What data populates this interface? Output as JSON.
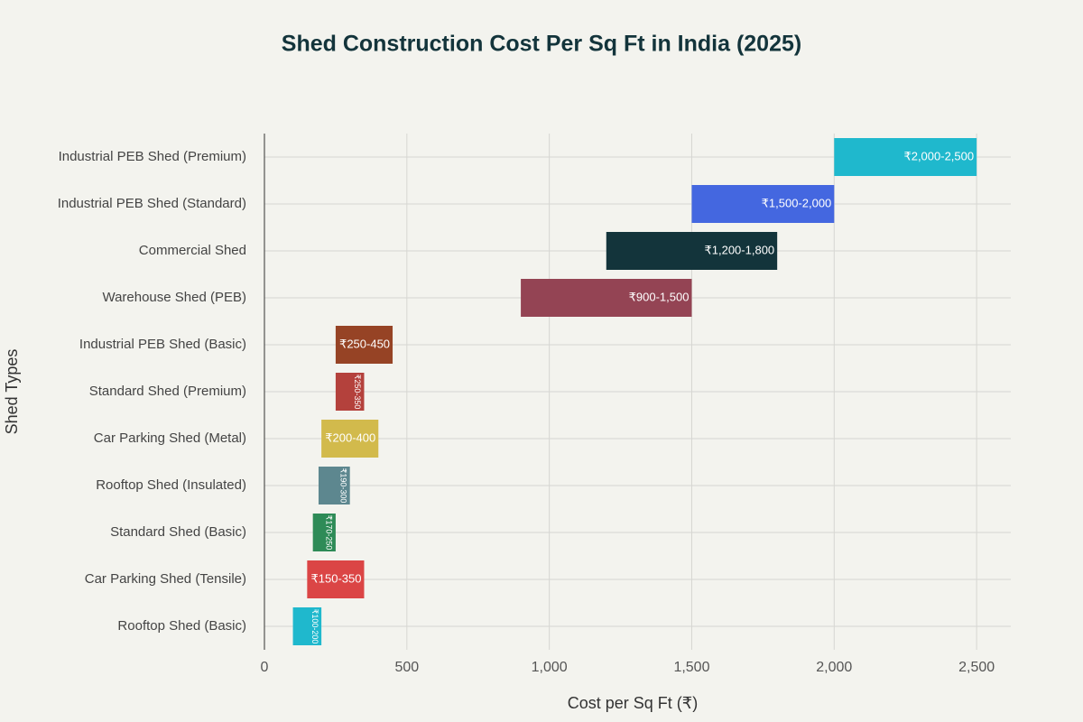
{
  "chart_data": {
    "type": "range_bar",
    "title": "Shed Construction Cost Per Sq Ft in India (2025)",
    "x_label": "Cost per Sq Ft (₹)",
    "y_label": "Shed Types",
    "categories": [
      "Industrial PEB Shed (Premium)",
      "Industrial PEB Shed (Standard)",
      "Commercial Shed",
      "Warehouse Shed (PEB)",
      "Industrial PEB Shed (Basic)",
      "Standard Shed (Premium)",
      "Car Parking Shed (Metal)",
      "Rooftop Shed (Insulated)",
      "Standard Shed (Basic)",
      "Car Parking Shed (Tensile)",
      "Rooftop Shed (Basic)"
    ],
    "starts": [
      2000,
      1500,
      1200,
      900,
      250,
      250,
      200,
      190,
      170,
      150,
      100
    ],
    "ends": [
      2500,
      2000,
      1800,
      1500,
      450,
      350,
      400,
      300,
      250,
      350,
      200
    ],
    "value_labels": [
      "₹2,000-2,500",
      "₹1,500-2,000",
      "₹1,200-1,800",
      "₹900-1,500",
      "₹250-450",
      "₹250-350",
      "₹200-400",
      "₹190-300",
      "₹170-250",
      "₹150-350",
      "₹100-200"
    ],
    "colors": [
      "#1fb8cd",
      "#4467e0",
      "#13343b",
      "#944454",
      "#964325",
      "#b4413c",
      "#d2ba4c",
      "#5d878f",
      "#2e8b57",
      "#db4545",
      "#1fb8cd"
    ],
    "xlim": [
      0,
      2620
    ],
    "xticks": [
      0,
      500,
      {
        "value": 1000,
        "label": "1,000"
      },
      {
        "value": 1500,
        "label": "1,500"
      },
      {
        "value": 2000,
        "label": "2,000"
      },
      {
        "value": 2500,
        "label": "2,500"
      }
    ],
    "grid": true
  }
}
